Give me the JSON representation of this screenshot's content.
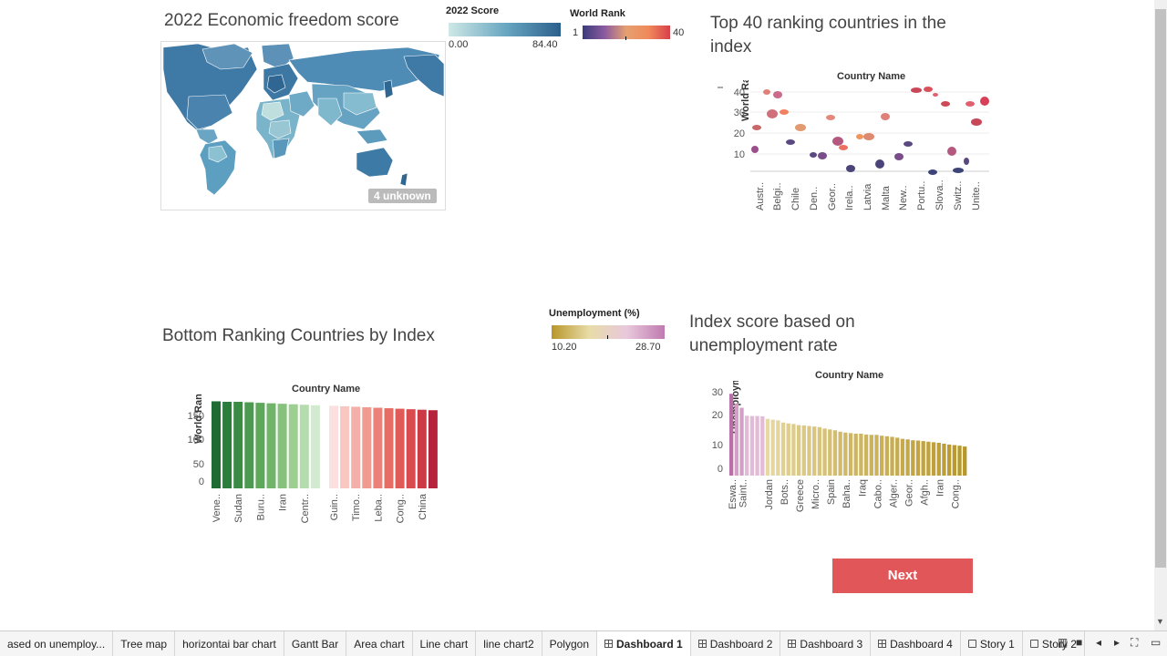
{
  "map_panel": {
    "title": "2022 Economic  freedom score",
    "unknown_badge": "4 unknown"
  },
  "score_legend": {
    "title": "2022 Score",
    "min": "0.00",
    "max": "84.40",
    "color_low": "#cfe8e6",
    "color_high": "#2a5f8c"
  },
  "rank_legend": {
    "title": "World Rank",
    "min": "1",
    "max": "40"
  },
  "top40_panel": {
    "title": "Top 40 ranking  countries in the index",
    "chart_title": "Country Name",
    "ylabel": "World Rank",
    "yticks": [
      "40",
      "30",
      "20",
      "10"
    ],
    "xticks": [
      "Austr..",
      "Belgi..",
      "Chile",
      "Den..",
      "Geor..",
      "Irela..",
      "Latvia",
      "Malta",
      "New..",
      "Portu..",
      "Slova..",
      "Switz..",
      "Unite.."
    ]
  },
  "bottom_panel": {
    "title": "Bottom Ranking  Countries by Index",
    "chart_title": "Country Name",
    "ylabel": "World Rank",
    "yticks": [
      "150",
      "100",
      "50",
      "0"
    ]
  },
  "unemployment_legend": {
    "title": "Unemployment (%)",
    "min": "10.20",
    "max": "28.70"
  },
  "unemp_panel": {
    "title": "Index score based on unemployment rate",
    "chart_title": "Country Name",
    "ylabel": "Unemployment (..",
    "yticks": [
      "30",
      "20",
      "10",
      "0"
    ]
  },
  "next_button": {
    "label": "Next"
  },
  "tabs": [
    {
      "label": "ased on unemploy...",
      "icon": "",
      "active": false
    },
    {
      "label": "Tree map",
      "icon": "",
      "active": false
    },
    {
      "label": "horizontai bar chart",
      "icon": "",
      "active": false
    },
    {
      "label": "Gantt Bar",
      "icon": "",
      "active": false
    },
    {
      "label": "Area chart",
      "icon": "",
      "active": false
    },
    {
      "label": "Line chart",
      "icon": "",
      "active": false
    },
    {
      "label": "line chart2",
      "icon": "",
      "active": false
    },
    {
      "label": "Polygon",
      "icon": "",
      "active": false
    },
    {
      "label": "Dashboard 1",
      "icon": "dashboard-icon",
      "active": true
    },
    {
      "label": "Dashboard 2",
      "icon": "dashboard-icon",
      "active": false
    },
    {
      "label": "Dashboard 3",
      "icon": "dashboard-icon",
      "active": false
    },
    {
      "label": "Dashboard 4",
      "icon": "dashboard-icon",
      "active": false
    },
    {
      "label": "Story 1",
      "icon": "story-icon",
      "active": false
    },
    {
      "label": "Story 2",
      "icon": "story-icon",
      "active": false
    }
  ],
  "chart_data": [
    {
      "type": "bar",
      "title": "Country Name",
      "ylabel": "World Rank",
      "ylim": [
        0,
        175
      ],
      "categories": [
        "Vene..",
        "",
        "Sudan",
        "",
        "Buru..",
        "",
        "Iran",
        "",
        "Centr..",
        "",
        "Guin..",
        "",
        "Timo..",
        "",
        "Leba..",
        "",
        "Cong..",
        "",
        "China",
        ""
      ],
      "values": [
        176,
        175,
        175,
        174,
        173,
        172,
        171,
        170,
        169,
        168,
        167,
        166,
        165,
        164,
        163,
        162,
        161,
        160,
        159,
        158
      ],
      "colors": [
        "#1e6b34",
        "#2b7d3c",
        "#3a8c45",
        "#4c9a4f",
        "#5ea85b",
        "#71b56a",
        "#86c27b",
        "#9ccf90",
        "#b5dcac",
        "#d2ead0",
        "#fce0e0",
        "#f8c7c2",
        "#f4b0a8",
        "#f09a90",
        "#eb8279",
        "#e66d66",
        "#e05a57",
        "#d94b4f",
        "#cc3a46",
        "#b5243c"
      ]
    },
    {
      "type": "bar",
      "title": "Country Name",
      "ylabel": "Unemployment (..",
      "ylim": [
        0,
        30
      ],
      "categories": [
        "Eswa..",
        "",
        "Saint..",
        "",
        "",
        "",
        "",
        "Jordan",
        "",
        "",
        "Bots..",
        "",
        "",
        "Greece",
        "",
        "",
        "Micro..",
        "",
        "",
        "Spain",
        "",
        "",
        "Baha..",
        "",
        "",
        "Iraq",
        "",
        "",
        "Cabo..",
        "",
        "",
        "Alger..",
        "",
        "",
        "Geor..",
        "",
        "",
        "Afgh..",
        "",
        "",
        "Iran",
        "",
        "",
        "Cong..",
        "",
        ""
      ],
      "values": [
        28.7,
        25.2,
        23.8,
        21.0,
        20.9,
        20.9,
        20.8,
        19.9,
        19.6,
        19.4,
        18.6,
        18.3,
        18.1,
        17.7,
        17.6,
        17.4,
        17.2,
        17.0,
        16.5,
        16.2,
        15.9,
        15.4,
        15.1,
        14.9,
        14.7,
        14.7,
        14.4,
        14.3,
        14.3,
        14.0,
        13.8,
        13.6,
        13.3,
        12.9,
        12.7,
        12.4,
        12.3,
        12.1,
        11.9,
        11.7,
        11.5,
        11.2,
        10.9,
        10.7,
        10.5,
        10.2
      ]
    }
  ]
}
